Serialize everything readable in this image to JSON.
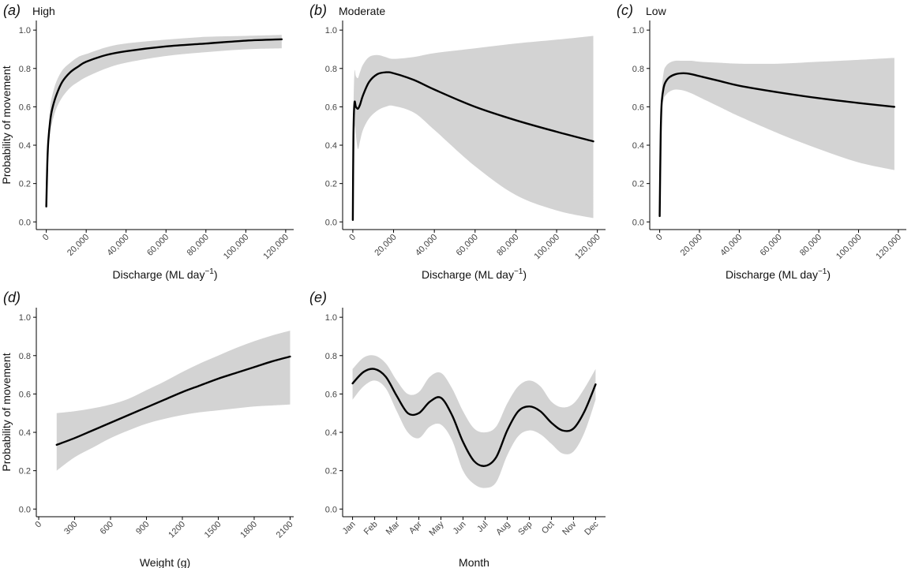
{
  "figure": {
    "y_axis_label": "Probability of movement",
    "discharge_label": "Discharge (ML day",
    "discharge_exp": "−1",
    "discharge_close": ")",
    "colors": {
      "band": "#d3d3d3",
      "line": "#000000",
      "axis": "#000000",
      "text": "#444444"
    }
  },
  "chart_data": [
    {
      "id": "a",
      "type": "line",
      "panel_label": "(a)",
      "panel_letter": "a",
      "title": "High",
      "xlabel": "Discharge (ML day⁻¹)",
      "ylabel": "Probability of movement",
      "xlim": [
        -5000,
        124000
      ],
      "ylim": [
        -0.04,
        1.05
      ],
      "x_ticks": [
        0,
        20000,
        40000,
        60000,
        80000,
        100000,
        120000
      ],
      "x_tick_labels": [
        "0",
        "20,000",
        "40,000",
        "60,000",
        "80,000",
        "100,000",
        "120,000"
      ],
      "y_ticks": [
        0,
        0.2,
        0.4,
        0.6,
        0.8,
        1.0
      ],
      "y_tick_labels": [
        "0.0",
        "0.2",
        "0.4",
        "0.6",
        "0.8",
        "1.0"
      ],
      "x": [
        0,
        500,
        1000,
        2000,
        3000,
        5000,
        8000,
        12000,
        16000,
        20000,
        30000,
        40000,
        60000,
        80000,
        100000,
        118000
      ],
      "y": [
        0.08,
        0.3,
        0.42,
        0.53,
        0.59,
        0.66,
        0.73,
        0.78,
        0.81,
        0.835,
        0.87,
        0.89,
        0.915,
        0.93,
        0.945,
        0.952
      ],
      "lower": [
        0.08,
        0.27,
        0.38,
        0.47,
        0.52,
        0.59,
        0.65,
        0.7,
        0.73,
        0.755,
        0.8,
        0.83,
        0.865,
        0.885,
        0.9,
        0.905
      ],
      "upper": [
        0.08,
        0.34,
        0.47,
        0.6,
        0.66,
        0.73,
        0.79,
        0.83,
        0.86,
        0.875,
        0.91,
        0.93,
        0.95,
        0.965,
        0.97,
        0.975
      ]
    },
    {
      "id": "b",
      "type": "line",
      "panel_label": "(b)",
      "panel_letter": "b",
      "title": "Moderate",
      "xlabel": "Discharge (ML day⁻¹)",
      "ylabel": "",
      "xlim": [
        -5000,
        124000
      ],
      "ylim": [
        -0.04,
        1.05
      ],
      "x_ticks": [
        0,
        20000,
        40000,
        60000,
        80000,
        100000,
        120000
      ],
      "x_tick_labels": [
        "0",
        "20,000",
        "40,000",
        "60,000",
        "80,000",
        "100,000",
        "120,000"
      ],
      "y_ticks": [
        0,
        0.2,
        0.4,
        0.6,
        0.8,
        1.0
      ],
      "y_tick_labels": [
        "0.0",
        "0.2",
        "0.4",
        "0.6",
        "0.8",
        "1.0"
      ],
      "x": [
        0,
        300,
        800,
        1500,
        2500,
        3500,
        5000,
        8000,
        12000,
        16000,
        20000,
        30000,
        40000,
        60000,
        80000,
        100000,
        118000
      ],
      "y": [
        0.01,
        0.45,
        0.62,
        0.6,
        0.59,
        0.61,
        0.66,
        0.73,
        0.77,
        0.78,
        0.775,
        0.74,
        0.69,
        0.6,
        0.53,
        0.47,
        0.42
      ],
      "lower": [
        0.01,
        0.4,
        0.5,
        0.45,
        0.38,
        0.42,
        0.48,
        0.54,
        0.58,
        0.6,
        0.605,
        0.57,
        0.48,
        0.29,
        0.14,
        0.06,
        0.02
      ],
      "upper": [
        0.01,
        0.55,
        0.78,
        0.76,
        0.75,
        0.78,
        0.82,
        0.86,
        0.87,
        0.86,
        0.85,
        0.86,
        0.88,
        0.905,
        0.93,
        0.95,
        0.97
      ]
    },
    {
      "id": "c",
      "type": "line",
      "panel_label": "(c)",
      "panel_letter": "c",
      "title": "Low",
      "xlabel": "Discharge (ML day⁻¹)",
      "ylabel": "",
      "xlim": [
        -5000,
        124000
      ],
      "ylim": [
        -0.04,
        1.05
      ],
      "x_ticks": [
        0,
        20000,
        40000,
        60000,
        80000,
        100000,
        120000
      ],
      "x_tick_labels": [
        "0",
        "20,000",
        "40,000",
        "60,000",
        "80,000",
        "100,000",
        "120,000"
      ],
      "y_ticks": [
        0,
        0.2,
        0.4,
        0.6,
        0.8,
        1.0
      ],
      "y_tick_labels": [
        "0.0",
        "0.2",
        "0.4",
        "0.6",
        "0.8",
        "1.0"
      ],
      "x": [
        0,
        500,
        1000,
        2000,
        3000,
        5000,
        8000,
        12000,
        16000,
        20000,
        30000,
        40000,
        60000,
        80000,
        100000,
        118000
      ],
      "y": [
        0.03,
        0.45,
        0.62,
        0.7,
        0.73,
        0.755,
        0.77,
        0.775,
        0.77,
        0.76,
        0.735,
        0.71,
        0.675,
        0.645,
        0.62,
        0.6
      ],
      "lower": [
        0.03,
        0.4,
        0.57,
        0.64,
        0.66,
        0.68,
        0.69,
        0.685,
        0.67,
        0.65,
        0.6,
        0.55,
        0.46,
        0.38,
        0.31,
        0.27
      ],
      "upper": [
        0.03,
        0.5,
        0.68,
        0.78,
        0.81,
        0.83,
        0.84,
        0.84,
        0.84,
        0.835,
        0.83,
        0.825,
        0.825,
        0.835,
        0.845,
        0.855
      ]
    },
    {
      "id": "d",
      "type": "line",
      "panel_label": "(d)",
      "panel_letter": "d",
      "title": "",
      "xlabel": "Weight (g)",
      "ylabel": "Probability of movement",
      "xlim": [
        -20,
        2130
      ],
      "ylim": [
        -0.04,
        1.05
      ],
      "x_ticks": [
        0,
        300,
        600,
        900,
        1200,
        1500,
        1800,
        2100
      ],
      "x_tick_labels": [
        "0",
        "300",
        "600",
        "900",
        "1200",
        "1500",
        "1800",
        "2100"
      ],
      "y_ticks": [
        0,
        0.2,
        0.4,
        0.6,
        0.8,
        1.0
      ],
      "y_tick_labels": [
        "0.0",
        "0.2",
        "0.4",
        "0.6",
        "0.8",
        "1.0"
      ],
      "x": [
        150,
        300,
        450,
        600,
        750,
        900,
        1050,
        1200,
        1350,
        1500,
        1650,
        1800,
        1950,
        2100
      ],
      "y": [
        0.335,
        0.37,
        0.41,
        0.45,
        0.49,
        0.53,
        0.57,
        0.61,
        0.645,
        0.68,
        0.71,
        0.74,
        0.77,
        0.795
      ],
      "lower": [
        0.2,
        0.27,
        0.32,
        0.37,
        0.41,
        0.445,
        0.47,
        0.49,
        0.505,
        0.515,
        0.525,
        0.535,
        0.54,
        0.545
      ],
      "upper": [
        0.5,
        0.51,
        0.525,
        0.545,
        0.575,
        0.62,
        0.665,
        0.715,
        0.76,
        0.8,
        0.84,
        0.875,
        0.905,
        0.93
      ]
    },
    {
      "id": "e",
      "type": "line",
      "panel_label": "(e)",
      "panel_letter": "e",
      "title": "",
      "xlabel": "Month",
      "ylabel": "",
      "xlim": [
        0.55,
        12.45
      ],
      "ylim": [
        -0.04,
        1.05
      ],
      "x_ticks": [
        1,
        2,
        3,
        4,
        5,
        6,
        7,
        8,
        9,
        10,
        11,
        12
      ],
      "x_tick_labels": [
        "Jan",
        "Feb",
        "Mar",
        "Apr",
        "May",
        "Jun",
        "Jul",
        "Aug",
        "Sep",
        "Oct",
        "Nov",
        "Dec"
      ],
      "y_ticks": [
        0,
        0.2,
        0.4,
        0.6,
        0.8,
        1.0
      ],
      "y_tick_labels": [
        "0.0",
        "0.2",
        "0.4",
        "0.6",
        "0.8",
        "1.0"
      ],
      "x": [
        1,
        1.5,
        2,
        2.5,
        3,
        3.5,
        4,
        4.5,
        5,
        5.5,
        6,
        6.5,
        7,
        7.5,
        8,
        8.5,
        9,
        9.5,
        10,
        10.5,
        11,
        11.5,
        12
      ],
      "y": [
        0.655,
        0.715,
        0.73,
        0.69,
        0.59,
        0.5,
        0.5,
        0.56,
        0.58,
        0.49,
        0.35,
        0.25,
        0.225,
        0.27,
        0.41,
        0.51,
        0.535,
        0.51,
        0.45,
        0.41,
        0.42,
        0.51,
        0.65
      ],
      "lower": [
        0.57,
        0.64,
        0.67,
        0.63,
        0.51,
        0.4,
        0.37,
        0.43,
        0.44,
        0.36,
        0.2,
        0.13,
        0.11,
        0.14,
        0.28,
        0.38,
        0.41,
        0.39,
        0.34,
        0.29,
        0.3,
        0.4,
        0.57
      ],
      "upper": [
        0.73,
        0.79,
        0.8,
        0.76,
        0.67,
        0.6,
        0.61,
        0.69,
        0.71,
        0.63,
        0.51,
        0.42,
        0.4,
        0.43,
        0.55,
        0.64,
        0.67,
        0.64,
        0.56,
        0.53,
        0.55,
        0.63,
        0.73
      ]
    }
  ]
}
